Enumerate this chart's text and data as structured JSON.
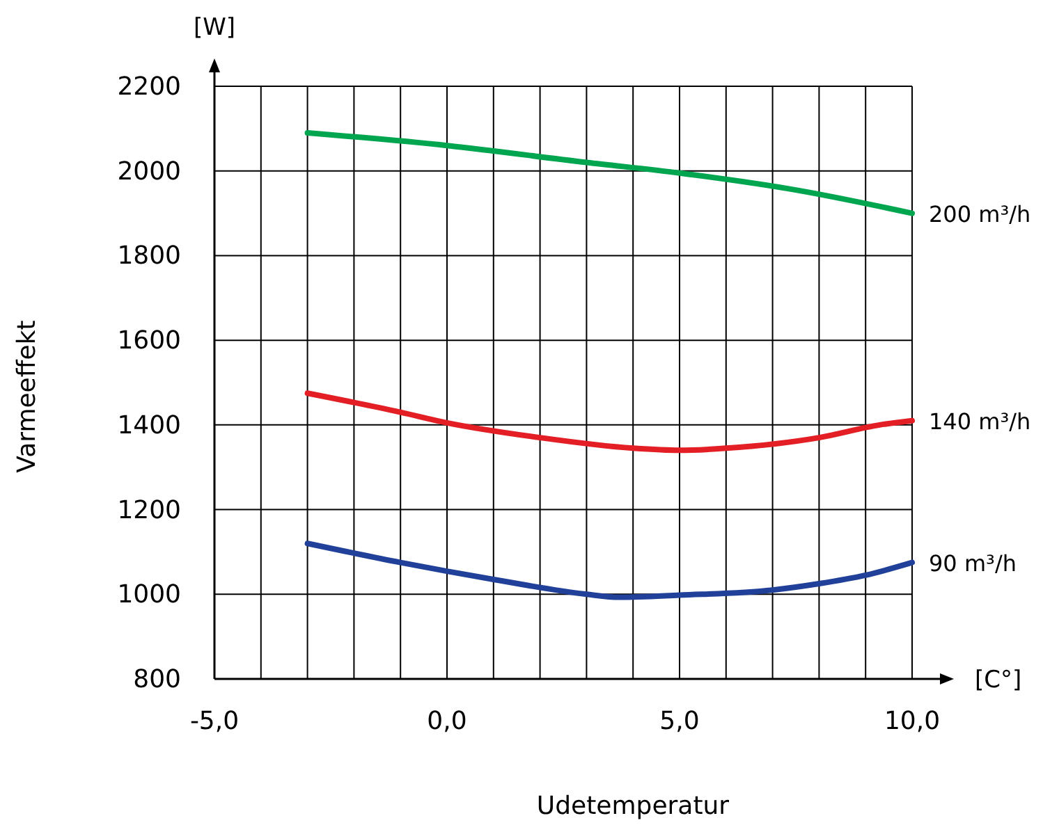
{
  "chart_data": {
    "type": "line",
    "xlabel": "Udetemperatur",
    "ylabel": "Varmeeffekt",
    "annotations": [
      "[W]",
      "[C°]"
    ],
    "xlim": [
      -5,
      10
    ],
    "ylim": [
      800,
      2200
    ],
    "xticks": [
      {
        "value": -5,
        "label": "-5,0"
      },
      {
        "value": -4,
        "label": null
      },
      {
        "value": -3,
        "label": null
      },
      {
        "value": -2,
        "label": null
      },
      {
        "value": -1,
        "label": null
      },
      {
        "value": 0,
        "label": "0,0"
      },
      {
        "value": 1,
        "label": null
      },
      {
        "value": 2,
        "label": null
      },
      {
        "value": 3,
        "label": null
      },
      {
        "value": 4,
        "label": null
      },
      {
        "value": 5,
        "label": "5,0"
      },
      {
        "value": 6,
        "label": null
      },
      {
        "value": 7,
        "label": null
      },
      {
        "value": 8,
        "label": null
      },
      {
        "value": 9,
        "label": null
      },
      {
        "value": 10,
        "label": "10,0"
      }
    ],
    "yticks": [
      800,
      1000,
      1200,
      1400,
      1600,
      1800,
      2000,
      2200
    ],
    "grid": true,
    "marker": "none",
    "line_style": "solid",
    "series": [
      {
        "name": "200 m³/h",
        "color": "#00a550",
        "x": [
          -3,
          0,
          3,
          5,
          7.5,
          10
        ],
        "values": [
          2090,
          2060,
          2020,
          1995,
          1955,
          1900
        ]
      },
      {
        "name": "140 m³/h",
        "color": "#e31e24",
        "x": [
          -3,
          -1,
          0,
          2,
          4,
          5,
          6,
          8,
          9.3,
          10
        ],
        "values": [
          1475,
          1430,
          1405,
          1370,
          1345,
          1340,
          1345,
          1370,
          1400,
          1410
        ]
      },
      {
        "name": "90 m³/h",
        "color": "#21409a",
        "x": [
          -3,
          -1,
          1,
          3,
          3.7,
          5,
          7,
          8,
          9,
          10
        ],
        "values": [
          1120,
          1075,
          1035,
          1000,
          993,
          998,
          1010,
          1025,
          1045,
          1075
        ]
      }
    ]
  }
}
